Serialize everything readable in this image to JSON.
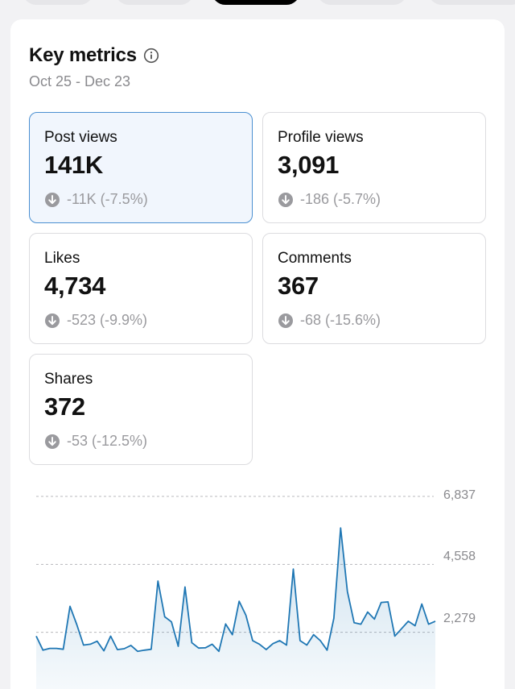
{
  "header": {
    "title": "Key metrics",
    "date_range": "Oct 25 - Dec 23"
  },
  "metrics": [
    {
      "label": "Post views",
      "value": "141K",
      "change": "-11K (-7.5%)",
      "selected": true
    },
    {
      "label": "Profile views",
      "value": "3,091",
      "change": "-186 (-5.7%)"
    },
    {
      "label": "Likes",
      "value": "4,734",
      "change": "-523 (-9.9%)"
    },
    {
      "label": "Comments",
      "value": "367",
      "change": "-68 (-15.6%)"
    },
    {
      "label": "Shares",
      "value": "372",
      "change": "-53 (-12.5%)"
    }
  ],
  "colors": {
    "accent": "#1f77b4",
    "selected_bg": "#f1f6fd",
    "selected_border": "#4a8fd1",
    "muted": "#9a9a9e"
  },
  "chart_data": {
    "type": "area",
    "series": [
      {
        "values": [
          2150,
          1680,
          1740,
          1740,
          1710,
          3150,
          2540,
          1850,
          1880,
          1980,
          1660,
          2150,
          1700,
          1730,
          1840,
          1640,
          1680,
          1710,
          4000,
          2800,
          2630,
          1810,
          3800,
          1930,
          1750,
          1760,
          1880,
          1640,
          2560,
          2200,
          3320,
          2850,
          2000,
          1880,
          1700,
          1900,
          2000,
          1850,
          4400,
          2000,
          1850,
          2200,
          2000,
          1680,
          2750,
          5780,
          3650,
          2600,
          2550,
          2960,
          2720,
          3280,
          3300,
          2150,
          2400,
          2650,
          2500,
          3230,
          2550,
          2650
        ]
      }
    ],
    "yticks": [
      "6,837",
      "4,558",
      "2,279"
    ],
    "ylim": [
      0,
      6837
    ],
    "grid": true
  }
}
